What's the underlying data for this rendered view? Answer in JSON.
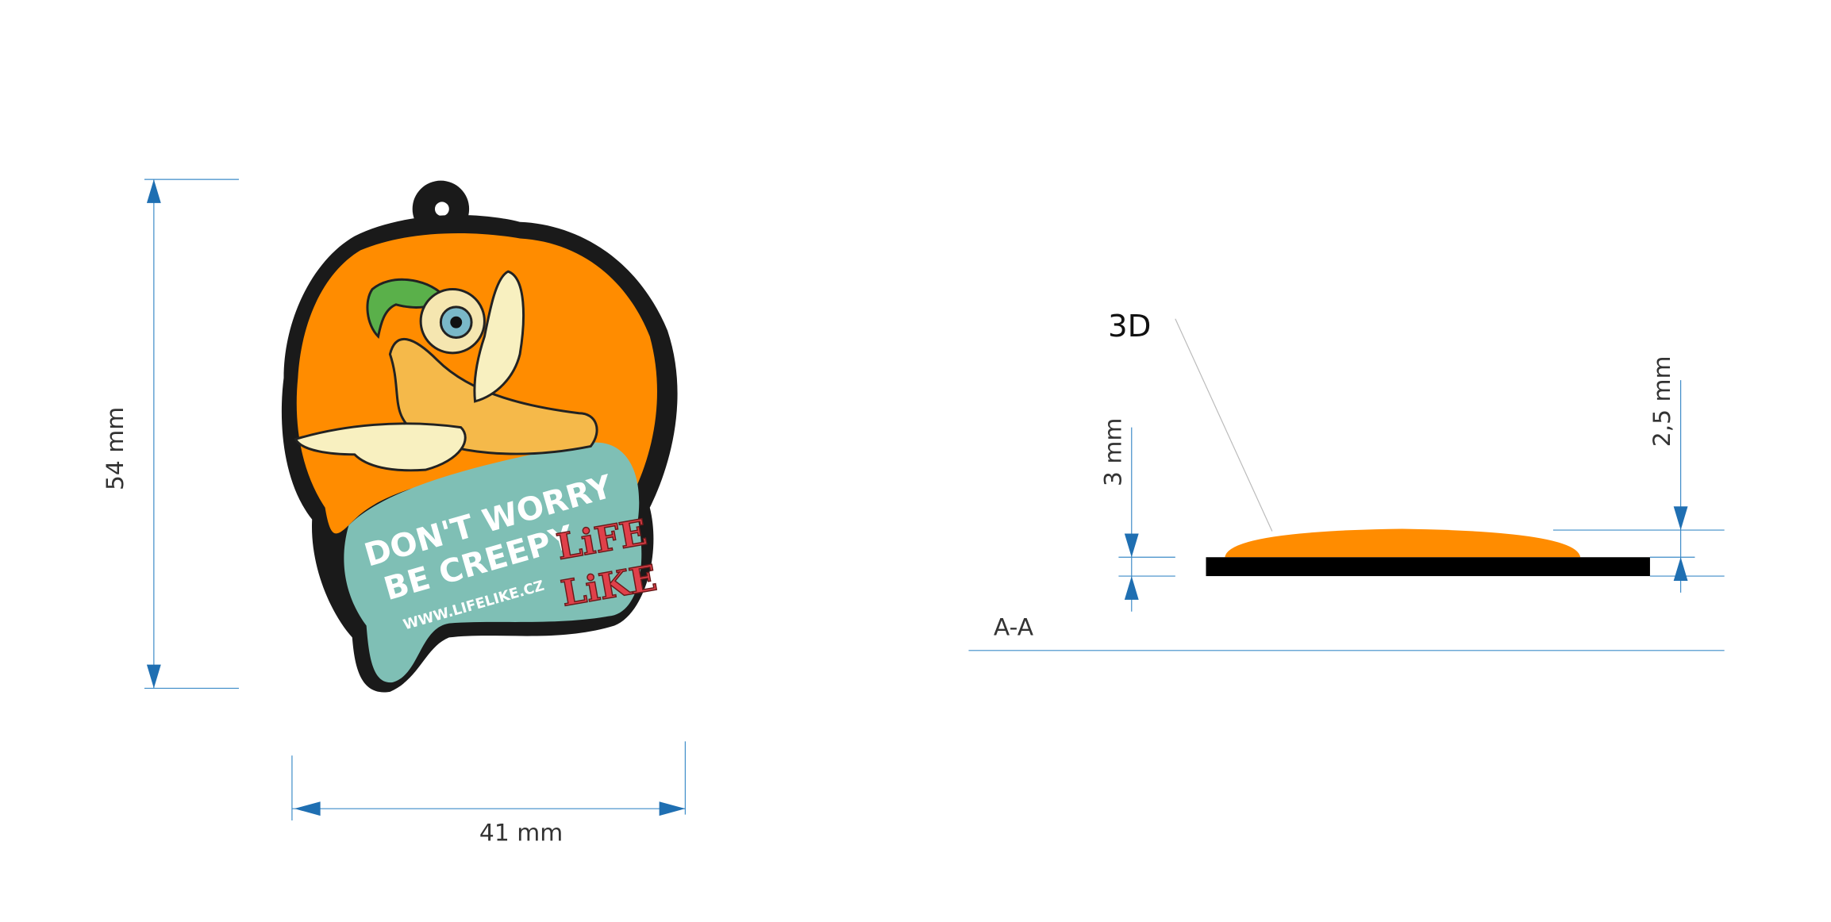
{
  "dimensions": {
    "height": "54 mm",
    "width": "41 mm"
  },
  "section": {
    "label": "A-A",
    "callout": "3D",
    "base_thickness": "3 mm",
    "dome_height": "2,5 mm"
  },
  "artwork": {
    "slogan_line1": "DON'T WORRY",
    "slogan_line2": "BE CREEPY",
    "url": "WWW.LIFELIKE.CZ",
    "logo_top": "LiFE",
    "logo_bottom": "LiKE"
  }
}
